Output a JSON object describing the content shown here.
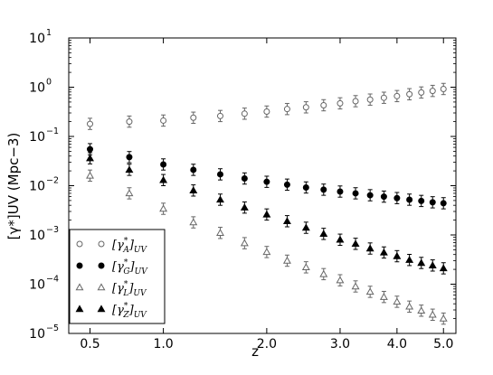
{
  "chart_data": {
    "type": "scatter",
    "xlabel": "z",
    "ylabel": "[γ*]UV (Mpc−3)",
    "x_scale": "log(1+z)",
    "y_scale": "log",
    "xlim": [
      0.38,
      5.3
    ],
    "ylim": [
      1e-05,
      10
    ],
    "x_ticks": [
      {
        "value": 0.5,
        "label": "0.5"
      },
      {
        "value": 1.0,
        "label": "1.0"
      },
      {
        "value": 2.0,
        "label": "2.0"
      },
      {
        "value": 3.0,
        "label": "3.0"
      },
      {
        "value": 4.0,
        "label": "4.0"
      },
      {
        "value": 5.0,
        "label": "5.0"
      }
    ],
    "y_ticks": [
      {
        "value": 1e-05,
        "base": "10",
        "exp": "-5"
      },
      {
        "value": 0.0001,
        "base": "10",
        "exp": "-4"
      },
      {
        "value": 0.001,
        "base": "10",
        "exp": "-3"
      },
      {
        "value": 0.01,
        "base": "10",
        "exp": "-2"
      },
      {
        "value": 0.1,
        "base": "10",
        "exp": "-1"
      },
      {
        "value": 1,
        "base": "10",
        "exp": "0"
      },
      {
        "value": 10,
        "base": "10",
        "exp": "1"
      }
    ],
    "legend_position": "bottom-left",
    "colors": {
      "gray": "#666666",
      "black": "#000000"
    },
    "x": [
      0.5,
      0.75,
      1.0,
      1.25,
      1.5,
      1.75,
      2.0,
      2.25,
      2.5,
      2.75,
      3.0,
      3.25,
      3.5,
      3.75,
      4.0,
      4.25,
      4.5,
      4.75,
      5.0
    ],
    "series": [
      {
        "name": "[γ*A]UV",
        "marker": "circle",
        "fill": "open",
        "color": "#666666",
        "values": [
          0.18,
          0.2,
          0.21,
          0.24,
          0.26,
          0.29,
          0.32,
          0.36,
          0.39,
          0.43,
          0.47,
          0.52,
          0.56,
          0.61,
          0.66,
          0.72,
          0.78,
          0.84,
          0.92
        ]
      },
      {
        "name": "[γ*G]UV",
        "marker": "circle",
        "fill": "filled",
        "color": "#000000",
        "values": [
          0.055,
          0.038,
          0.027,
          0.021,
          0.017,
          0.014,
          0.012,
          0.0105,
          0.0092,
          0.0083,
          0.0076,
          0.007,
          0.0064,
          0.006,
          0.0056,
          0.0052,
          0.0049,
          0.0046,
          0.0044
        ]
      },
      {
        "name": "[γ*L]UV",
        "marker": "triangle",
        "fill": "open",
        "color": "#666666",
        "values": [
          0.016,
          0.007,
          0.0034,
          0.0018,
          0.0011,
          0.00068,
          0.00045,
          0.0003,
          0.00022,
          0.00016,
          0.00012,
          9e-05,
          7e-05,
          5.5e-05,
          4.4e-05,
          3.5e-05,
          2.9e-05,
          2.4e-05,
          2e-05
        ]
      },
      {
        "name": "[γ*Z]UV",
        "marker": "triangle",
        "fill": "filled",
        "color": "#000000",
        "values": [
          0.036,
          0.021,
          0.013,
          0.008,
          0.0052,
          0.0036,
          0.0026,
          0.0019,
          0.0014,
          0.00105,
          0.0008,
          0.00066,
          0.00053,
          0.00044,
          0.00037,
          0.00031,
          0.00027,
          0.00024,
          0.00021
        ]
      }
    ],
    "legend": [
      {
        "series_index": 0,
        "label_main": "[γ",
        "label_sup": "*",
        "label_sub": "A",
        "label_tail": "]",
        "label_tail_sub": "UV"
      },
      {
        "series_index": 1,
        "label_main": "[γ",
        "label_sup": "*",
        "label_sub": "G",
        "label_tail": "]",
        "label_tail_sub": "UV"
      },
      {
        "series_index": 2,
        "label_main": "[γ",
        "label_sup": "*",
        "label_sub": "L",
        "label_tail": "]",
        "label_tail_sub": "UV"
      },
      {
        "series_index": 3,
        "label_main": "[γ",
        "label_sup": "*",
        "label_sub": "Z",
        "label_tail": "]",
        "label_tail_sub": "UV"
      }
    ]
  }
}
